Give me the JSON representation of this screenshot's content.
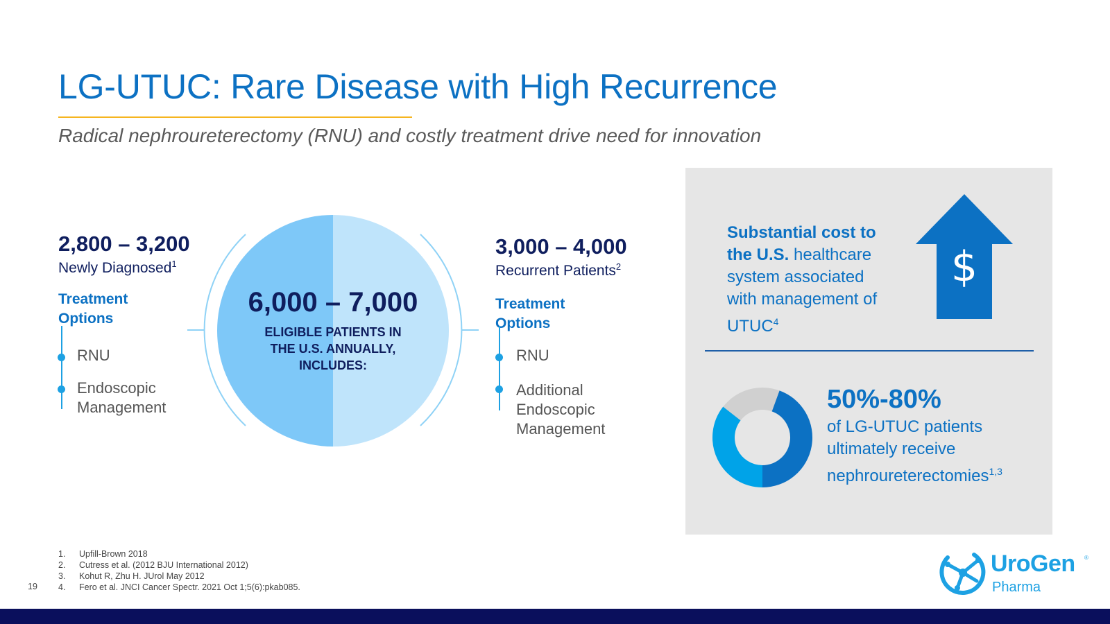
{
  "title": "LG-UTUC: Rare Disease with High Recurrence",
  "subtitle": "Radical nephroureterectomy (RNU) and costly treatment drive need for innovation",
  "left": {
    "number": "2,800 – 3,200",
    "label": "Newly Diagnosed",
    "sup": "1",
    "treatment_line1": "Treatment",
    "treatment_line2": "Options",
    "options": [
      "RNU",
      "Endoscopic",
      "Management"
    ]
  },
  "center": {
    "number": "6,000 – 7,000",
    "line1": "ELIGIBLE PATIENTS IN",
    "line2": "THE U.S. ANNUALLY,",
    "line3": "INCLUDES:"
  },
  "right": {
    "number": "3,000 – 4,000",
    "label": "Recurrent Patients",
    "sup": "2",
    "treatment_line1": "Treatment",
    "treatment_line2": "Options",
    "options": [
      "RNU",
      "Additional",
      "Endoscopic",
      "Management"
    ]
  },
  "panel": {
    "cost_bold1": "Substantial cost to",
    "cost_bold2": "the U.S.",
    "cost_rest1": " healthcare",
    "cost_rest2": "system associated",
    "cost_rest3": "with management of",
    "cost_rest4": "UTUC",
    "cost_sup": "4",
    "dollar": "$",
    "pct": "50%-80%",
    "pct_desc1": "of LG-UTUC patients",
    "pct_desc2": "ultimately receive",
    "pct_desc3": "nephroureterectomies",
    "pct_sup": "1,3",
    "donut_fraction": 0.8,
    "donut_colors": [
      "#0c71c3",
      "#00a3e8",
      "#d0d0d0"
    ]
  },
  "footnotes": [
    {
      "n": "1.",
      "text": "Upfill-Brown 2018"
    },
    {
      "n": "2.",
      "text": "Cutress et al. (2012 BJU International 2012)"
    },
    {
      "n": "3.",
      "text": "Kohut R, Zhu H. JUrol May 2012"
    },
    {
      "n": "4.",
      "text": "Fero et al. JNCI Cancer Spectr. 2021 Oct 1;5(6):pkab085."
    }
  ],
  "page_number": "19",
  "logo": {
    "word": "UroGen",
    "reg": "®",
    "sub": "Pharma"
  },
  "colors": {
    "brand_blue": "#0c71c3",
    "navy": "#0f1e5e",
    "accent_yellow": "#f6b520",
    "light_blue": "#1da1e3"
  }
}
